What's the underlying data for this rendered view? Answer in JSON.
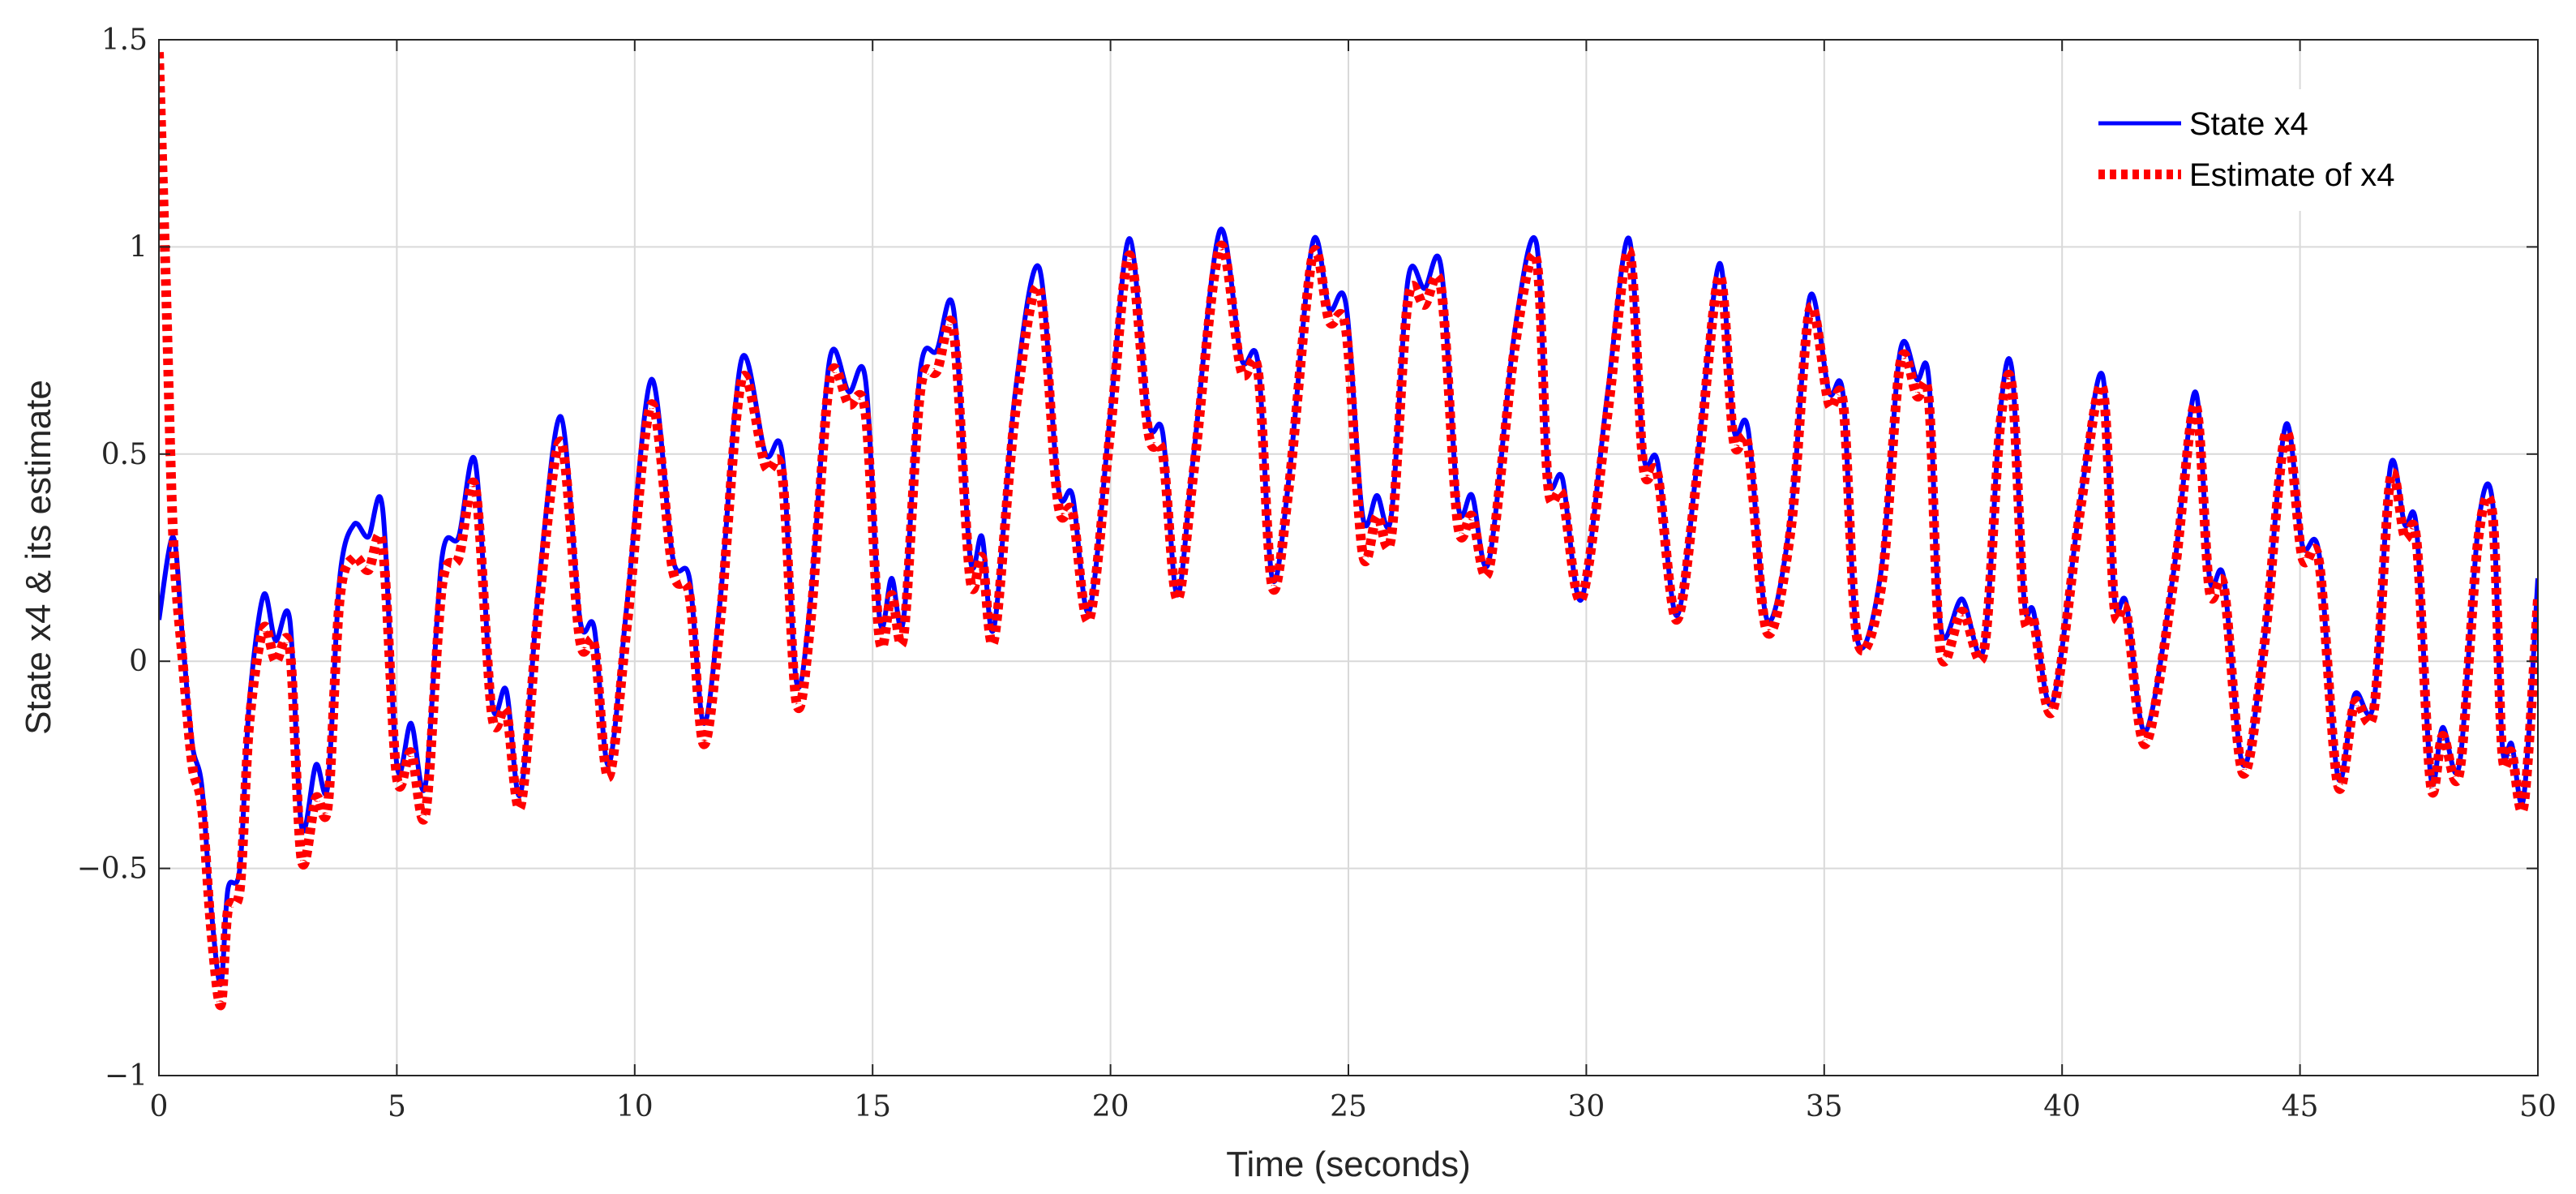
{
  "chart_data": {
    "type": "line",
    "xlabel": "Time (seconds)",
    "ylabel": "State x4 & its estimate",
    "xlim": [
      0,
      50
    ],
    "ylim": [
      -1,
      1.5
    ],
    "xticks": [
      0,
      5,
      10,
      15,
      20,
      25,
      30,
      35,
      40,
      45,
      50
    ],
    "yticks": [
      -1,
      -0.5,
      0,
      0.5,
      1,
      1.5
    ],
    "xtick_labels": [
      "0",
      "5",
      "10",
      "15",
      "20",
      "25",
      "30",
      "35",
      "40",
      "45",
      "50"
    ],
    "ytick_labels": [
      "−1",
      "−0.5",
      "0",
      "0.5",
      "1",
      "1.5"
    ],
    "grid": true,
    "legend_position": "top-right",
    "series": [
      {
        "name": "State x4",
        "color": "#0000ff",
        "style": "solid",
        "x": [
          0,
          0.3,
          0.5,
          0.7,
          0.9,
          1.1,
          1.3,
          1.45,
          1.7,
          1.9,
          2.2,
          2.45,
          2.75,
          3.0,
          3.3,
          3.55,
          3.8,
          4.1,
          4.4,
          4.7,
          5.0,
          5.3,
          5.6,
          5.95,
          6.3,
          6.65,
          7.0,
          7.3,
          7.6,
          8.0,
          8.45,
          8.85,
          9.15,
          9.45,
          9.85,
          10.35,
          10.8,
          11.15,
          11.45,
          11.8,
          12.25,
          12.75,
          13.1,
          13.4,
          13.7,
          14.1,
          14.5,
          14.85,
          15.15,
          15.4,
          15.65,
          16.0,
          16.35,
          16.7,
          17.05,
          17.3,
          17.55,
          18.0,
          18.5,
          18.9,
          19.2,
          19.55,
          20.0,
          20.4,
          20.8,
          21.1,
          21.4,
          21.75,
          22.3,
          22.75,
          23.1,
          23.4,
          23.75,
          24.25,
          24.6,
          24.95,
          25.3,
          25.6,
          25.9,
          26.25,
          26.6,
          26.95,
          27.3,
          27.6,
          27.95,
          28.5,
          28.95,
          29.2,
          29.5,
          29.9,
          30.45,
          30.9,
          31.2,
          31.5,
          31.9,
          32.35,
          32.8,
          33.1,
          33.4,
          33.8,
          34.3,
          34.7,
          35.1,
          35.4,
          35.7,
          36.2,
          36.6,
          36.95,
          37.2,
          37.45,
          37.9,
          38.35,
          38.7,
          38.95,
          39.2,
          39.4,
          39.8,
          40.4,
          40.85,
          41.1,
          41.35,
          41.75,
          42.35,
          42.8,
          43.1,
          43.4,
          43.8,
          44.25,
          44.7,
          45.05,
          45.4,
          45.8,
          46.15,
          46.55,
          46.9,
          47.2,
          47.45,
          47.75,
          48.0,
          48.35,
          48.75,
          49.05,
          49.25,
          49.45,
          49.7,
          50.0
        ],
        "y": [
          0.1,
          0.3,
          0.05,
          -0.2,
          -0.3,
          -0.6,
          -0.78,
          -0.55,
          -0.5,
          -0.1,
          0.16,
          0.05,
          0.1,
          -0.4,
          -0.25,
          -0.3,
          0.2,
          0.33,
          0.3,
          0.37,
          -0.25,
          -0.15,
          -0.3,
          0.25,
          0.3,
          0.48,
          -0.1,
          -0.07,
          -0.32,
          0.2,
          0.59,
          0.1,
          0.08,
          -0.25,
          0.15,
          0.68,
          0.25,
          0.2,
          -0.15,
          0.15,
          0.73,
          0.5,
          0.5,
          -0.05,
          0.15,
          0.73,
          0.65,
          0.68,
          0.1,
          0.2,
          0.1,
          0.7,
          0.75,
          0.85,
          0.25,
          0.3,
          0.08,
          0.65,
          0.95,
          0.42,
          0.4,
          0.12,
          0.6,
          1.02,
          0.58,
          0.55,
          0.16,
          0.5,
          1.04,
          0.73,
          0.72,
          0.2,
          0.44,
          1.01,
          0.85,
          0.86,
          0.35,
          0.4,
          0.35,
          0.92,
          0.9,
          0.95,
          0.38,
          0.4,
          0.24,
          0.8,
          1.01,
          0.45,
          0.44,
          0.15,
          0.65,
          1.02,
          0.5,
          0.48,
          0.11,
          0.5,
          0.96,
          0.56,
          0.56,
          0.1,
          0.35,
          0.88,
          0.65,
          0.64,
          0.05,
          0.22,
          0.75,
          0.68,
          0.68,
          0.08,
          0.15,
          0.03,
          0.6,
          0.7,
          0.15,
          0.12,
          -0.1,
          0.4,
          0.69,
          0.15,
          0.14,
          -0.17,
          0.22,
          0.65,
          0.2,
          0.2,
          -0.25,
          0.05,
          0.57,
          0.28,
          0.26,
          -0.28,
          -0.08,
          -0.1,
          0.47,
          0.33,
          0.32,
          -0.28,
          -0.16,
          -0.25,
          0.33,
          0.38,
          -0.2,
          -0.2,
          -0.33,
          0.2
        ]
      },
      {
        "name": "Estimate of x4",
        "color": "#ff0000",
        "style": "dotted",
        "x": [
          0,
          0.15,
          0.3,
          0.5,
          0.7,
          0.9,
          1.1,
          1.3,
          1.45,
          1.7,
          1.9,
          2.2,
          2.45,
          2.75,
          3.0,
          3.3,
          3.55,
          3.8,
          4.1,
          4.4,
          4.7,
          5.0,
          5.3,
          5.6,
          5.95,
          6.3,
          6.65,
          7.0,
          7.3,
          7.6,
          8.0,
          8.45,
          8.85,
          9.15,
          9.45,
          9.85,
          10.35,
          10.8,
          11.15,
          11.45,
          11.8,
          12.25,
          12.75,
          13.1,
          13.4,
          13.7,
          14.1,
          14.5,
          14.85,
          15.15,
          15.4,
          15.65,
          16.0,
          16.35,
          16.7,
          17.05,
          17.3,
          17.55,
          18.0,
          18.5,
          18.9,
          19.2,
          19.55,
          20.0,
          20.4,
          20.8,
          21.1,
          21.4,
          21.75,
          22.3,
          22.75,
          23.1,
          23.4,
          23.75,
          24.25,
          24.6,
          24.95,
          25.3,
          25.6,
          25.9,
          26.25,
          26.6,
          26.95,
          27.3,
          27.6,
          27.95,
          28.5,
          28.95,
          29.2,
          29.5,
          29.9,
          30.45,
          30.9,
          31.2,
          31.5,
          31.9,
          32.35,
          32.8,
          33.1,
          33.4,
          33.8,
          34.3,
          34.7,
          35.1,
          35.4,
          35.7,
          36.2,
          36.6,
          36.95,
          37.2,
          37.45,
          37.9,
          38.35,
          38.7,
          38.95,
          39.2,
          39.4,
          39.8,
          40.4,
          40.85,
          41.1,
          41.35,
          41.75,
          42.35,
          42.8,
          43.1,
          43.4,
          43.8,
          44.25,
          44.7,
          45.05,
          45.4,
          45.8,
          46.15,
          46.55,
          46.9,
          47.2,
          47.45,
          47.75,
          48.0,
          48.35,
          48.75,
          49.05,
          49.25,
          49.45,
          49.7,
          50.0
        ],
        "y": [
          1.47,
          0.9,
          0.3,
          0.0,
          -0.25,
          -0.35,
          -0.65,
          -0.83,
          -0.6,
          -0.55,
          -0.15,
          0.08,
          0.0,
          0.03,
          -0.48,
          -0.33,
          -0.35,
          0.15,
          0.25,
          0.22,
          0.28,
          -0.28,
          -0.22,
          -0.37,
          0.18,
          0.25,
          0.42,
          -0.13,
          -0.12,
          -0.35,
          0.15,
          0.53,
          0.05,
          0.04,
          -0.28,
          0.1,
          0.62,
          0.22,
          0.16,
          -0.2,
          0.1,
          0.68,
          0.47,
          0.45,
          -0.1,
          0.1,
          0.68,
          0.62,
          0.6,
          0.05,
          0.16,
          0.06,
          0.65,
          0.7,
          0.8,
          0.2,
          0.25,
          0.05,
          0.6,
          0.9,
          0.38,
          0.36,
          0.1,
          0.56,
          0.98,
          0.55,
          0.5,
          0.15,
          0.46,
          1.0,
          0.7,
          0.7,
          0.18,
          0.42,
          0.98,
          0.82,
          0.8,
          0.26,
          0.35,
          0.3,
          0.87,
          0.86,
          0.9,
          0.33,
          0.35,
          0.22,
          0.76,
          0.97,
          0.42,
          0.4,
          0.15,
          0.6,
          0.99,
          0.47,
          0.45,
          0.1,
          0.47,
          0.93,
          0.53,
          0.52,
          0.07,
          0.32,
          0.85,
          0.62,
          0.62,
          0.05,
          0.18,
          0.72,
          0.64,
          0.63,
          0.02,
          0.12,
          0.02,
          0.57,
          0.66,
          0.12,
          0.1,
          -0.12,
          0.38,
          0.66,
          0.13,
          0.12,
          -0.2,
          0.2,
          0.62,
          0.17,
          0.18,
          -0.27,
          0.04,
          0.55,
          0.25,
          0.24,
          -0.3,
          -0.1,
          -0.12,
          0.44,
          0.3,
          0.29,
          -0.3,
          -0.18,
          -0.27,
          0.3,
          0.35,
          -0.22,
          -0.22,
          -0.35,
          0.15
        ]
      }
    ]
  }
}
